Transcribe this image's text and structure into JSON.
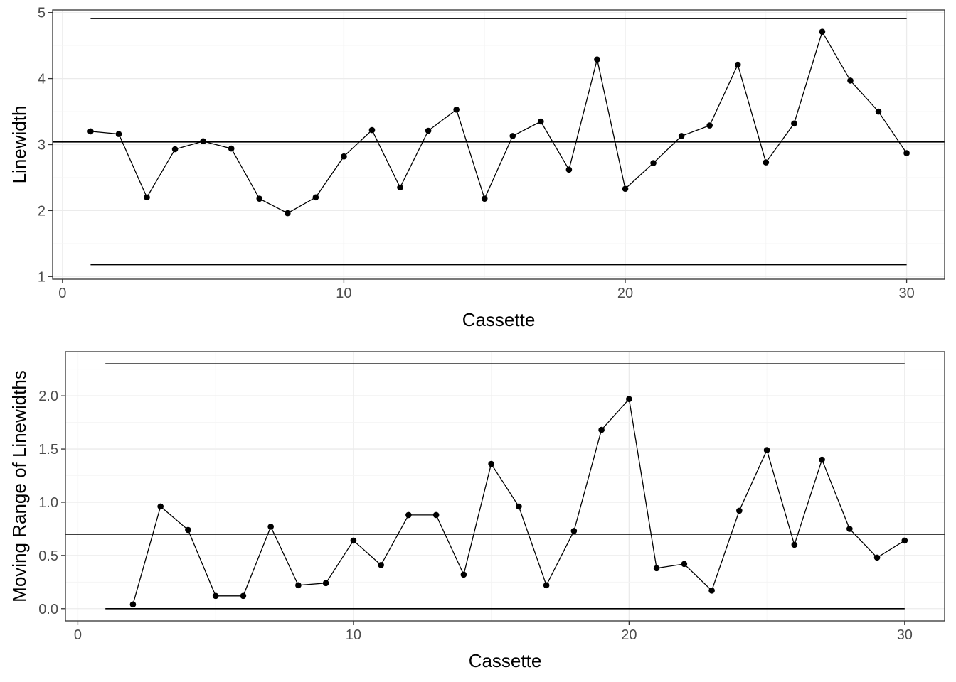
{
  "chart_data": [
    {
      "type": "line",
      "xlabel": "Cassette",
      "ylabel": "Linewidth",
      "xlim": [
        -0.35,
        31.35
      ],
      "ylim": [
        0.96,
        5.04
      ],
      "xticks": [
        0,
        10,
        20,
        30
      ],
      "yticks": [
        1,
        2,
        3,
        4,
        5
      ],
      "grid": true,
      "series": [
        {
          "x": [
            1,
            2,
            3,
            4,
            5,
            6,
            7,
            8,
            9,
            10,
            11,
            12,
            13,
            14,
            15,
            16,
            17,
            18,
            19,
            20,
            21,
            22,
            23,
            24,
            25,
            26,
            27,
            28,
            29,
            30
          ],
          "values": [
            3.2,
            3.16,
            2.2,
            2.93,
            3.05,
            2.94,
            2.18,
            1.96,
            2.2,
            2.82,
            3.22,
            2.35,
            3.21,
            3.53,
            2.18,
            3.13,
            3.35,
            2.62,
            4.29,
            2.33,
            2.72,
            3.13,
            3.29,
            4.21,
            2.73,
            3.32,
            4.71,
            3.97,
            3.5,
            2.87
          ]
        }
      ],
      "reference_lines": [
        {
          "y": 4.91,
          "x": [
            1,
            30
          ]
        },
        {
          "y": 3.04,
          "x": [
            -0.35,
            31.35
          ]
        },
        {
          "y": 1.18,
          "x": [
            1,
            30
          ]
        }
      ]
    },
    {
      "type": "line",
      "xlabel": "Cassette",
      "ylabel": "Moving Range of Linewidths",
      "xlim": [
        -0.45,
        31.45
      ],
      "ylim": [
        -0.115,
        2.415
      ],
      "xticks": [
        0,
        10,
        20,
        30
      ],
      "yticks": [
        0.0,
        0.5,
        1.0,
        1.5,
        2.0
      ],
      "ytick_labels": [
        "0.0",
        "0.5",
        "1.0",
        "1.5",
        "2.0"
      ],
      "grid": true,
      "series": [
        {
          "x": [
            2,
            3,
            4,
            5,
            6,
            7,
            8,
            9,
            10,
            11,
            12,
            13,
            14,
            15,
            16,
            17,
            18,
            19,
            20,
            21,
            22,
            23,
            24,
            25,
            26,
            27,
            28,
            29,
            30
          ],
          "values": [
            0.04,
            0.96,
            0.74,
            0.12,
            0.12,
            0.77,
            0.22,
            0.24,
            0.64,
            0.41,
            0.88,
            0.88,
            0.32,
            1.36,
            0.96,
            0.22,
            0.73,
            1.68,
            1.97,
            0.38,
            0.42,
            0.17,
            0.92,
            1.49,
            0.6,
            1.4,
            0.75,
            0.48,
            0.64
          ]
        }
      ],
      "reference_lines": [
        {
          "y": 2.3,
          "x": [
            1,
            30
          ]
        },
        {
          "y": 0.7,
          "x": [
            -0.45,
            31.45
          ]
        },
        {
          "y": 0.0,
          "x": [
            1,
            30
          ]
        }
      ]
    }
  ]
}
